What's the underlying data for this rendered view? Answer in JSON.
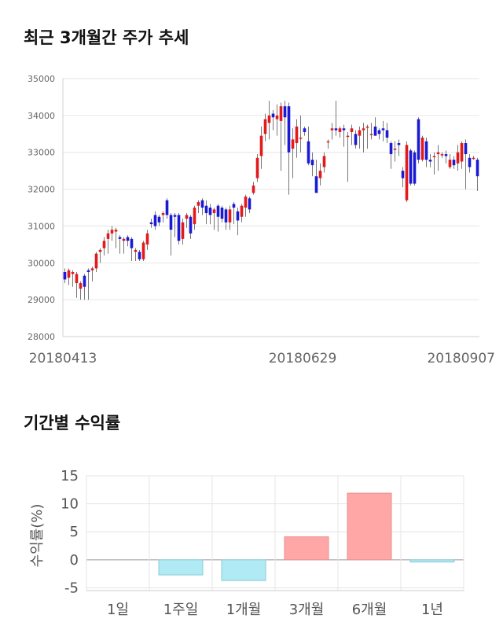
{
  "sections": {
    "price_title": "최근 3개월간 주가 추세",
    "returns_title": "기간별 수익률"
  },
  "chart_data": [
    {
      "type": "candlestick",
      "title": "최근 3개월간 주가 추세",
      "ylim": [
        28000,
        35000
      ],
      "yticks": [
        28000,
        29000,
        30000,
        31000,
        32000,
        33000,
        34000,
        35000
      ],
      "xtick_labels": [
        "20180413",
        "20180629",
        "20180907"
      ],
      "grid": true,
      "colors": {
        "up": "#e3191a",
        "down": "#1a1ad6",
        "wick": "#555555"
      },
      "candles": [
        [
          29750,
          29550,
          29850,
          29450
        ],
        [
          29600,
          29800,
          29850,
          29400
        ],
        [
          29700,
          29750,
          29800,
          29350
        ],
        [
          29450,
          29700,
          29750,
          29050
        ],
        [
          29300,
          29450,
          29500,
          29000
        ],
        [
          29650,
          29350,
          29700,
          29000
        ],
        [
          29800,
          29750,
          29850,
          29000
        ],
        [
          29800,
          29850,
          29900,
          29500
        ],
        [
          29850,
          30250,
          30300,
          29750
        ],
        [
          30300,
          30350,
          30400,
          30000
        ],
        [
          30400,
          30600,
          30700,
          30200
        ],
        [
          30650,
          30800,
          30900,
          30250
        ],
        [
          30800,
          30900,
          31000,
          30600
        ],
        [
          30850,
          30900,
          30950,
          30400
        ],
        [
          30700,
          30650,
          30750,
          30250
        ],
        [
          30600,
          30650,
          30700,
          30250
        ],
        [
          30700,
          30600,
          30750,
          30450
        ],
        [
          30650,
          30400,
          30700,
          30050
        ],
        [
          30300,
          30350,
          30400,
          30050
        ],
        [
          30300,
          30100,
          30350,
          30050
        ],
        [
          30100,
          30550,
          30600,
          30050
        ],
        [
          30500,
          30800,
          30900,
          30350
        ],
        [
          31100,
          31050,
          31200,
          30950
        ],
        [
          31300,
          31000,
          31400,
          30900
        ],
        [
          31250,
          31100,
          31300,
          31000
        ],
        [
          31300,
          31350,
          31400,
          31100
        ],
        [
          31700,
          31300,
          31750,
          31200
        ],
        [
          31300,
          30900,
          31350,
          30200
        ],
        [
          31300,
          31250,
          31350,
          30700
        ],
        [
          31300,
          30600,
          31350,
          30500
        ],
        [
          30650,
          31100,
          31200,
          30500
        ],
        [
          31200,
          31300,
          31350,
          30950
        ],
        [
          31250,
          30800,
          31300,
          30650
        ],
        [
          31050,
          31500,
          31550,
          30900
        ],
        [
          31550,
          31650,
          31700,
          31350
        ],
        [
          31700,
          31500,
          31750,
          31300
        ],
        [
          31550,
          31350,
          31700,
          31050
        ],
        [
          31500,
          31300,
          31600,
          31050
        ],
        [
          31350,
          31450,
          31500,
          30900
        ],
        [
          31550,
          31250,
          31600,
          30850
        ],
        [
          31500,
          31200,
          31550,
          31100
        ],
        [
          31450,
          31100,
          31500,
          30900
        ],
        [
          31100,
          31450,
          31550,
          30900
        ],
        [
          31600,
          31500,
          31650,
          31050
        ],
        [
          31400,
          31150,
          31500,
          30750
        ],
        [
          31250,
          31550,
          31600,
          31100
        ],
        [
          31500,
          31800,
          31850,
          31250
        ],
        [
          31750,
          31450,
          31800,
          31350
        ],
        [
          31900,
          32100,
          32200,
          31850
        ],
        [
          32300,
          32850,
          32950,
          32200
        ],
        [
          32900,
          33450,
          33700,
          32550
        ],
        [
          33500,
          33900,
          34050,
          33300
        ],
        [
          33800,
          34000,
          34400,
          33350
        ],
        [
          34050,
          33950,
          34150,
          33600
        ],
        [
          33900,
          34000,
          34300,
          33450
        ],
        [
          33850,
          34250,
          34350,
          32500
        ],
        [
          34250,
          33950,
          34400,
          33200
        ],
        [
          34250,
          33000,
          34350,
          31850
        ],
        [
          33100,
          33350,
          33650,
          32300
        ],
        [
          33250,
          33700,
          33900,
          32850
        ],
        [
          33400,
          33400,
          34000,
          33000
        ],
        [
          33650,
          33550,
          33700,
          33450
        ],
        [
          33300,
          32700,
          33700,
          32650
        ],
        [
          32800,
          32650,
          33000,
          32350
        ],
        [
          32350,
          31900,
          32800,
          31900
        ],
        [
          32300,
          32500,
          32700,
          32100
        ],
        [
          32600,
          32900,
          33000,
          32450
        ],
        [
          33300,
          33300,
          33350,
          33100
        ],
        [
          33600,
          33650,
          33800,
          33350
        ],
        [
          33650,
          33600,
          34400,
          33450
        ],
        [
          33550,
          33650,
          33700,
          33400
        ],
        [
          33650,
          33600,
          33750,
          33150
        ],
        [
          33450,
          33450,
          33550,
          32200
        ],
        [
          33550,
          33650,
          33750,
          33200
        ],
        [
          33500,
          33200,
          33600,
          33100
        ],
        [
          33450,
          33600,
          33700,
          33100
        ],
        [
          33600,
          33650,
          33800,
          33000
        ],
        [
          33700,
          33700,
          33750,
          33100
        ],
        [
          33500,
          33500,
          33800,
          33350
        ],
        [
          33700,
          33450,
          33950,
          33450
        ],
        [
          33600,
          33500,
          33650,
          33350
        ],
        [
          33650,
          33600,
          33850,
          33300
        ],
        [
          33600,
          33400,
          33800,
          33250
        ],
        [
          33250,
          32950,
          33300,
          32550
        ],
        [
          33100,
          33100,
          33300,
          32750
        ],
        [
          33250,
          33200,
          33350,
          32900
        ],
        [
          32500,
          32300,
          32600,
          32050
        ],
        [
          31700,
          33200,
          33300,
          31650
        ],
        [
          33050,
          32150,
          33100,
          32100
        ],
        [
          33000,
          32150,
          33050,
          32100
        ],
        [
          33900,
          32800,
          33950,
          32700
        ],
        [
          32800,
          33400,
          33450,
          32750
        ],
        [
          33300,
          32800,
          33400,
          32600
        ],
        [
          32800,
          32750,
          32950,
          32600
        ],
        [
          32900,
          32900,
          33000,
          32400
        ],
        [
          32950,
          33000,
          33200,
          32500
        ],
        [
          32950,
          32950,
          33000,
          32850
        ],
        [
          32950,
          32900,
          33050,
          32700
        ],
        [
          32600,
          32800,
          32950,
          32550
        ],
        [
          32800,
          32650,
          32900,
          32550
        ],
        [
          32700,
          33000,
          33200,
          32500
        ],
        [
          32750,
          33250,
          33300,
          32550
        ],
        [
          33250,
          32950,
          33350,
          32000
        ],
        [
          32850,
          32600,
          32950,
          32450
        ],
        [
          32850,
          32850,
          32900,
          32800
        ],
        [
          32800,
          32350,
          32850,
          31950
        ]
      ]
    },
    {
      "type": "bar",
      "title": "기간별 수익률",
      "categories": [
        "1일",
        "1주일",
        "1개월",
        "3개월",
        "6개월",
        "1년"
      ],
      "values": [
        0,
        -2.7,
        -3.7,
        4.1,
        11.9,
        -0.4
      ],
      "ylabel": "수익률(%)",
      "ylim": [
        -5.5,
        15
      ],
      "yticks": [
        -5,
        0,
        5,
        10,
        15
      ],
      "grid": true,
      "colors": {
        "positive_fill": "#ffa6a6",
        "positive_stroke": "#e88f8f",
        "negative_fill": "#b0eaf4",
        "negative_stroke": "#8ccbd8"
      }
    }
  ]
}
